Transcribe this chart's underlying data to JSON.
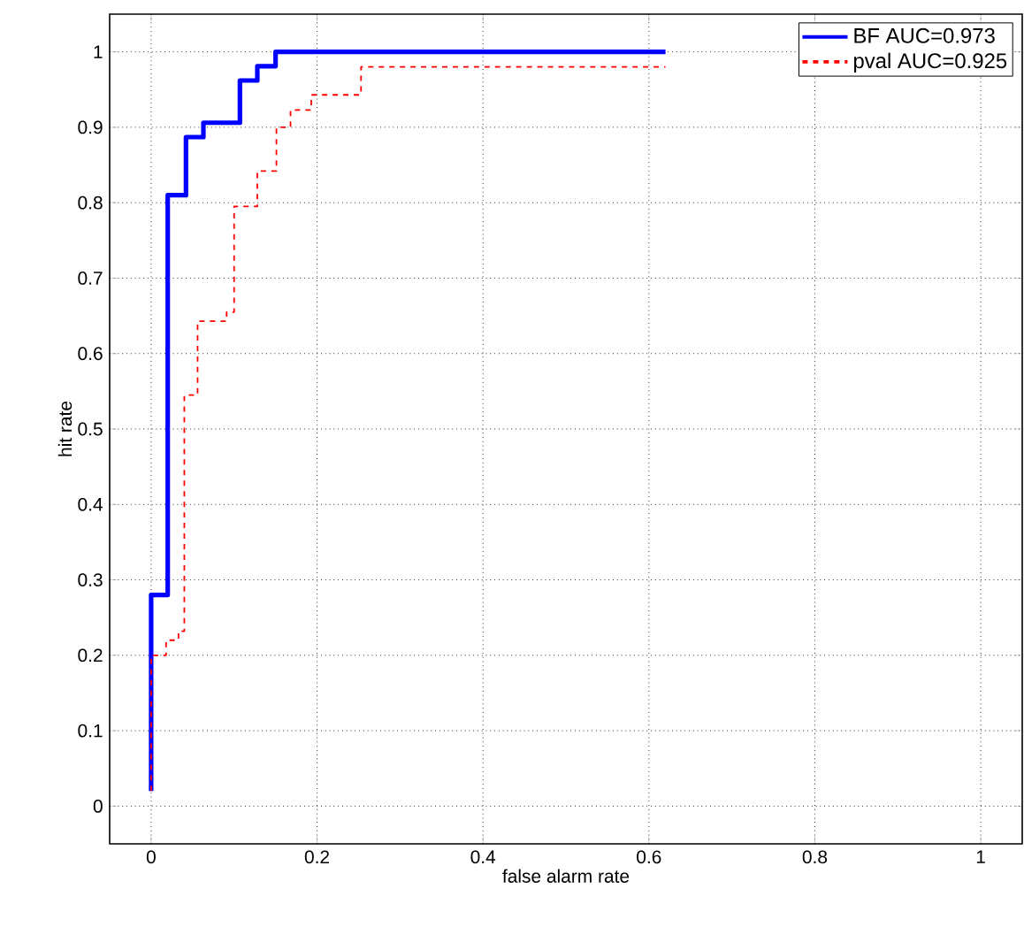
{
  "chart_data": {
    "type": "line",
    "xlabel": "false alarm rate",
    "ylabel": "hit rate",
    "xlim": [
      -0.05,
      1.05
    ],
    "ylim": [
      -0.05,
      1.05
    ],
    "xticks": [
      0,
      0.2,
      0.4,
      0.6,
      0.8,
      1
    ],
    "yticks": [
      0,
      0.1,
      0.2,
      0.3,
      0.4,
      0.5,
      0.6,
      0.7,
      0.8,
      0.9,
      1
    ],
    "grid": true,
    "legend": "top right",
    "marker": "none",
    "series": [
      {
        "name": "BF AUC=0.973",
        "color": "#0000ff",
        "line_style": "solid",
        "x": [
          0,
          0,
          0.02,
          0.02,
          0.042,
          0.042,
          0.063,
          0.063,
          0.107,
          0.107,
          0.128,
          0.128,
          0.15,
          0.15,
          0.62
        ],
        "values": [
          0.02,
          0.28,
          0.28,
          0.81,
          0.81,
          0.887,
          0.887,
          0.906,
          0.906,
          0.962,
          0.962,
          0.981,
          0.981,
          1,
          1
        ]
      },
      {
        "name": "pval AUC=0.925",
        "color": "#ff0000",
        "line_style": "dotted",
        "x": [
          0,
          0,
          0.018,
          0.018,
          0.033,
          0.033,
          0.04,
          0.04,
          0.056,
          0.056,
          0.091,
          0.091,
          0.1,
          0.1,
          0.128,
          0.128,
          0.151,
          0.151,
          0.168,
          0.168,
          0.193,
          0.193,
          0.253,
          0.253,
          0.62
        ],
        "values": [
          0.02,
          0.2,
          0.2,
          0.22,
          0.22,
          0.232,
          0.232,
          0.545,
          0.545,
          0.643,
          0.643,
          0.655,
          0.655,
          0.795,
          0.795,
          0.842,
          0.842,
          0.9,
          0.9,
          0.923,
          0.923,
          0.943,
          0.943,
          0.98,
          0.98
        ]
      }
    ]
  }
}
